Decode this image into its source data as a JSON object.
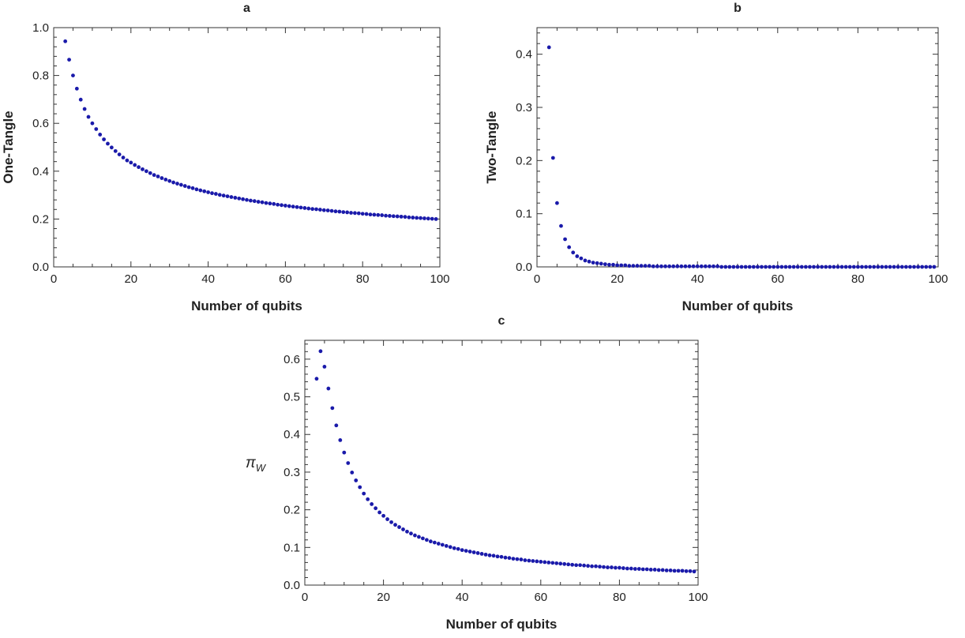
{
  "chart_data": [
    {
      "type": "scatter",
      "title": "a",
      "xlabel": "Number of qubits",
      "ylabel": "One-Tangle",
      "xlim": [
        0,
        100
      ],
      "ylim": [
        0,
        1.0
      ],
      "xticks": [
        "0",
        "20",
        "40",
        "60",
        "80",
        "100"
      ],
      "yticks": [
        "0.0",
        "0.2",
        "0.4",
        "0.6",
        "0.8",
        "1.0"
      ],
      "color": "#1a1aaa",
      "grid": false,
      "series": [
        {
          "x": [
            3,
            4,
            5,
            6,
            7,
            8,
            9,
            10,
            11,
            12,
            13,
            14,
            15,
            16,
            17,
            18,
            19,
            20,
            21,
            22,
            23,
            24,
            25,
            26,
            27,
            28,
            29,
            30,
            31,
            32,
            33,
            34,
            35,
            36,
            37,
            38,
            39,
            40,
            41,
            42,
            43,
            44,
            45,
            46,
            47,
            48,
            49,
            50,
            51,
            52,
            53,
            54,
            55,
            56,
            57,
            58,
            59,
            60,
            61,
            62,
            63,
            64,
            65,
            66,
            67,
            68,
            69,
            70,
            71,
            72,
            73,
            74,
            75,
            76,
            77,
            78,
            79,
            80,
            81,
            82,
            83,
            84,
            85,
            86,
            87,
            88,
            89,
            90,
            91,
            92,
            93,
            94,
            95,
            96,
            97,
            98,
            99
          ],
          "y": [
            0.943,
            0.866,
            0.8,
            0.745,
            0.699,
            0.66,
            0.627,
            0.6,
            0.576,
            0.553,
            0.533,
            0.515,
            0.499,
            0.484,
            0.47,
            0.457,
            0.445,
            0.436,
            0.426,
            0.417,
            0.408,
            0.4,
            0.392,
            0.384,
            0.378,
            0.371,
            0.365,
            0.359,
            0.353,
            0.348,
            0.343,
            0.338,
            0.333,
            0.329,
            0.324,
            0.32,
            0.316,
            0.312,
            0.308,
            0.305,
            0.301,
            0.298,
            0.295,
            0.292,
            0.289,
            0.286,
            0.283,
            0.28,
            0.277,
            0.275,
            0.272,
            0.27,
            0.267,
            0.265,
            0.263,
            0.26,
            0.258,
            0.256,
            0.254,
            0.252,
            0.25,
            0.248,
            0.246,
            0.244,
            0.242,
            0.241,
            0.239,
            0.237,
            0.236,
            0.234,
            0.232,
            0.231,
            0.229,
            0.228,
            0.226,
            0.225,
            0.224,
            0.222,
            0.221,
            0.219,
            0.218,
            0.217,
            0.216,
            0.214,
            0.213,
            0.212,
            0.211,
            0.21,
            0.209,
            0.207,
            0.206,
            0.205,
            0.204,
            0.203,
            0.202,
            0.201,
            0.2
          ]
        }
      ]
    },
    {
      "type": "scatter",
      "title": "b",
      "xlabel": "Number of qubits",
      "ylabel": "Two-Tangle",
      "xlim": [
        0,
        100
      ],
      "ylim": [
        0,
        0.45
      ],
      "xticks": [
        "0",
        "20",
        "40",
        "60",
        "80",
        "100"
      ],
      "yticks": [
        "0.0",
        "0.1",
        "0.2",
        "0.3",
        "0.4"
      ],
      "color": "#1a1aaa",
      "grid": false,
      "series": [
        {
          "x": [
            3,
            4,
            5,
            6,
            7,
            8,
            9,
            10,
            11,
            12,
            13,
            14,
            15,
            16,
            17,
            18,
            19,
            20,
            21,
            22,
            23,
            24,
            25,
            26,
            27,
            28,
            29,
            30,
            31,
            32,
            33,
            34,
            35,
            36,
            37,
            38,
            39,
            40,
            41,
            42,
            43,
            44,
            45,
            46,
            47,
            48,
            49,
            50,
            51,
            52,
            53,
            54,
            55,
            56,
            57,
            58,
            59,
            60,
            61,
            62,
            63,
            64,
            65,
            66,
            67,
            68,
            69,
            70,
            71,
            72,
            73,
            74,
            75,
            76,
            77,
            78,
            79,
            80,
            81,
            82,
            83,
            84,
            85,
            86,
            87,
            88,
            89,
            90,
            91,
            92,
            93,
            94,
            95,
            96,
            97,
            98,
            99
          ],
          "y": [
            0.413,
            0.205,
            0.12,
            0.077,
            0.052,
            0.037,
            0.027,
            0.02,
            0.016,
            0.012,
            0.01,
            0.008,
            0.007,
            0.006,
            0.005,
            0.004,
            0.004,
            0.003,
            0.003,
            0.003,
            0.002,
            0.002,
            0.002,
            0.002,
            0.002,
            0.002,
            0.001,
            0.001,
            0.001,
            0.001,
            0.001,
            0.001,
            0.001,
            0.001,
            0.001,
            0.001,
            0.001,
            0.001,
            0.001,
            0.001,
            0.001,
            0.001,
            0.001,
            0,
            0,
            0,
            0,
            0,
            0,
            0,
            0,
            0,
            0,
            0,
            0,
            0,
            0,
            0,
            0,
            0,
            0,
            0,
            0,
            0,
            0,
            0,
            0,
            0,
            0,
            0,
            0,
            0,
            0,
            0,
            0,
            0,
            0,
            0,
            0,
            0,
            0,
            0,
            0,
            0,
            0,
            0,
            0,
            0,
            0,
            0,
            0,
            0,
            0,
            0,
            0,
            0,
            0
          ]
        }
      ]
    },
    {
      "type": "scatter",
      "title": "c",
      "xlabel": "Number of qubits",
      "ylabel": "π",
      "ylabel_sub": "W",
      "xlim": [
        0,
        100
      ],
      "ylim": [
        0,
        0.65
      ],
      "xticks": [
        "0",
        "20",
        "40",
        "60",
        "80",
        "100"
      ],
      "yticks": [
        "0.0",
        "0.1",
        "0.2",
        "0.3",
        "0.4",
        "0.5",
        "0.6"
      ],
      "color": "#1a1aaa",
      "grid": false,
      "series": [
        {
          "x": [
            3,
            4,
            5,
            6,
            7,
            8,
            9,
            10,
            11,
            12,
            13,
            14,
            15,
            16,
            17,
            18,
            19,
            20,
            21,
            22,
            23,
            24,
            25,
            26,
            27,
            28,
            29,
            30,
            31,
            32,
            33,
            34,
            35,
            36,
            37,
            38,
            39,
            40,
            41,
            42,
            43,
            44,
            45,
            46,
            47,
            48,
            49,
            50,
            51,
            52,
            53,
            54,
            55,
            56,
            57,
            58,
            59,
            60,
            61,
            62,
            63,
            64,
            65,
            66,
            67,
            68,
            69,
            70,
            71,
            72,
            73,
            74,
            75,
            76,
            77,
            78,
            79,
            80,
            81,
            82,
            83,
            84,
            85,
            86,
            87,
            88,
            89,
            90,
            91,
            92,
            93,
            94,
            95,
            96,
            97,
            98,
            99
          ],
          "y": [
            0.548,
            0.621,
            0.58,
            0.522,
            0.47,
            0.424,
            0.385,
            0.352,
            0.324,
            0.299,
            0.278,
            0.26,
            0.243,
            0.228,
            0.215,
            0.204,
            0.193,
            0.184,
            0.175,
            0.167,
            0.16,
            0.154,
            0.148,
            0.142,
            0.137,
            0.132,
            0.128,
            0.124,
            0.12,
            0.116,
            0.113,
            0.11,
            0.107,
            0.104,
            0.101,
            0.098,
            0.096,
            0.093,
            0.091,
            0.089,
            0.087,
            0.085,
            0.083,
            0.081,
            0.079,
            0.078,
            0.076,
            0.075,
            0.073,
            0.072,
            0.07,
            0.069,
            0.068,
            0.066,
            0.065,
            0.064,
            0.063,
            0.062,
            0.061,
            0.06,
            0.059,
            0.058,
            0.057,
            0.056,
            0.055,
            0.054,
            0.053,
            0.053,
            0.052,
            0.051,
            0.05,
            0.05,
            0.049,
            0.048,
            0.047,
            0.047,
            0.046,
            0.046,
            0.045,
            0.044,
            0.044,
            0.043,
            0.043,
            0.042,
            0.042,
            0.041,
            0.041,
            0.04,
            0.04,
            0.039,
            0.039,
            0.038,
            0.038,
            0.038,
            0.037,
            0.037,
            0.036
          ]
        }
      ]
    }
  ]
}
